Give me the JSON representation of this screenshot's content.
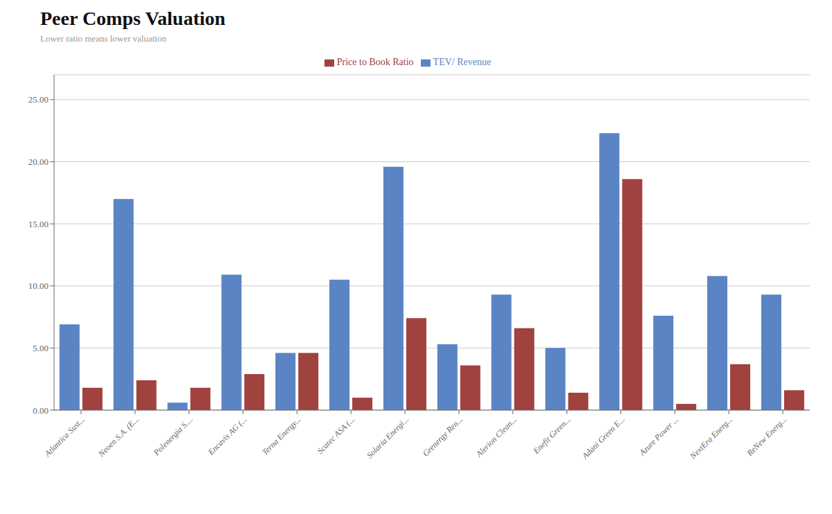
{
  "chart_data": {
    "type": "bar",
    "title": "Peer Comps Valuation",
    "subtitle": "Lower ratio means lower valuation",
    "categories": [
      "Atlantica Sust...",
      "Neoen S.A. (E...",
      "Polenergia S....",
      "Encavis AG (...",
      "Terna Energy...",
      "Scatec ASA (...",
      "Solaria Energi...",
      "Grenergy Ren...",
      "Alerion Clean...",
      "Enefit Green...",
      "Adani Green E...",
      "Azure Power ...",
      "NextEra Energ...",
      "ReNew Energ..."
    ],
    "series": [
      {
        "name": "TEV/ Revenue",
        "color": "#5B84C4",
        "values": [
          6.9,
          17.0,
          0.6,
          10.9,
          4.6,
          10.5,
          19.6,
          5.3,
          9.3,
          5.0,
          22.3,
          7.6,
          10.8,
          9.3
        ]
      },
      {
        "name": "Price to Book Ratio",
        "color": "#A0423E",
        "values": [
          1.8,
          2.4,
          1.8,
          2.9,
          4.6,
          1.0,
          7.4,
          3.6,
          6.6,
          1.4,
          18.6,
          0.5,
          3.7,
          1.6
        ]
      }
    ],
    "ylim": [
      0,
      27
    ],
    "yticks": [
      {
        "value": 0,
        "label": "0.00"
      },
      {
        "value": 5,
        "label": "5.00"
      },
      {
        "value": 10,
        "label": "10.00"
      },
      {
        "value": 15,
        "label": "15.00"
      },
      {
        "value": 20,
        "label": "20.00"
      },
      {
        "value": 25,
        "label": "25.00"
      }
    ],
    "grid": true,
    "legend": "top"
  }
}
